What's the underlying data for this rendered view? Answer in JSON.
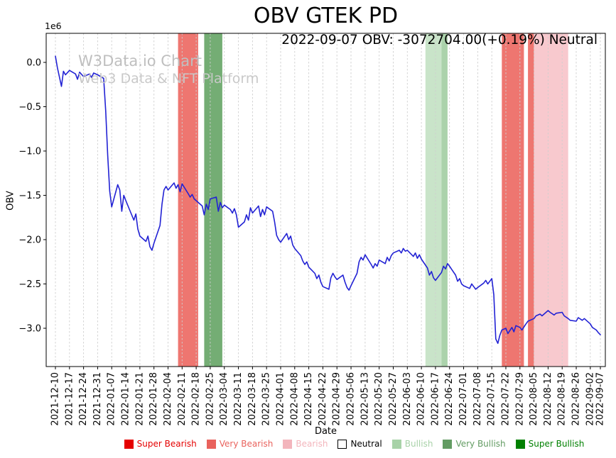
{
  "title": "OBV GTEK PD",
  "annotation": "2022-09-07 OBV: -3072704.00(+0.19%) Neutral",
  "watermark": {
    "line1": "W3Data.io Chart",
    "line2": "Web3 Data & NFT Platform"
  },
  "axes": {
    "ylabel": "OBV",
    "xlabel": "Date",
    "offset_label": "1e6"
  },
  "status": {
    "date": "2022-09-07",
    "obv_value": -3072704.0,
    "change_pct": "+0.19%",
    "signal": "Neutral"
  },
  "chart_data": {
    "type": "line",
    "title": "OBV GTEK PD",
    "xlabel": "Date",
    "ylabel": "OBV",
    "y_scale": 1000000,
    "ylim": [
      -3.432,
      0.328
    ],
    "x_range": [
      "2021-12-10",
      "2022-09-07"
    ],
    "grid_color": "#cfcfcf",
    "y_ticks": [
      0.0,
      -0.5,
      -1.0,
      -1.5,
      -2.0,
      -2.5,
      -3.0
    ],
    "x_ticks": [
      "2021-12-10",
      "2021-12-17",
      "2021-12-24",
      "2021-12-31",
      "2022-01-07",
      "2022-01-14",
      "2022-01-21",
      "2022-01-28",
      "2022-02-04",
      "2022-02-11",
      "2022-02-18",
      "2022-02-25",
      "2022-03-04",
      "2022-03-11",
      "2022-03-18",
      "2022-03-25",
      "2022-04-01",
      "2022-04-08",
      "2022-04-15",
      "2022-04-22",
      "2022-04-29",
      "2022-05-06",
      "2022-05-13",
      "2022-05-20",
      "2022-05-27",
      "2022-06-03",
      "2022-06-10",
      "2022-06-17",
      "2022-06-24",
      "2022-07-01",
      "2022-07-08",
      "2022-07-15",
      "2022-07-22",
      "2022-07-29",
      "2022-08-05",
      "2022-08-12",
      "2022-08-19",
      "2022-08-26",
      "2022-09-02",
      "2022-09-07"
    ],
    "series": [
      {
        "name": "OBV",
        "color": "#2222d4",
        "points_unit": "days from 2021-12-10, value in 1e6",
        "points": [
          [
            0,
            0.07
          ],
          [
            1,
            -0.06
          ],
          [
            3,
            -0.27
          ],
          [
            4,
            -0.1
          ],
          [
            5,
            -0.14
          ],
          [
            7,
            -0.09
          ],
          [
            10,
            -0.13
          ],
          [
            11,
            -0.19
          ],
          [
            12,
            -0.11
          ],
          [
            14,
            -0.16
          ],
          [
            17,
            -0.13
          ],
          [
            18,
            -0.17
          ],
          [
            19,
            -0.12
          ],
          [
            21,
            -0.14
          ],
          [
            24,
            -0.18
          ],
          [
            25,
            -0.55
          ],
          [
            26,
            -1.05
          ],
          [
            27,
            -1.45
          ],
          [
            28,
            -1.63
          ],
          [
            31,
            -1.38
          ],
          [
            32,
            -1.44
          ],
          [
            33,
            -1.68
          ],
          [
            34,
            -1.5
          ],
          [
            35,
            -1.56
          ],
          [
            39,
            -1.78
          ],
          [
            40,
            -1.71
          ],
          [
            41,
            -1.88
          ],
          [
            42,
            -1.96
          ],
          [
            45,
            -2.02
          ],
          [
            46,
            -1.96
          ],
          [
            47,
            -2.08
          ],
          [
            48,
            -2.12
          ],
          [
            49,
            -2.04
          ],
          [
            52,
            -1.84
          ],
          [
            53,
            -1.6
          ],
          [
            54,
            -1.44
          ],
          [
            55,
            -1.4
          ],
          [
            56,
            -1.44
          ],
          [
            59,
            -1.36
          ],
          [
            60,
            -1.42
          ],
          [
            61,
            -1.38
          ],
          [
            62,
            -1.46
          ],
          [
            63,
            -1.37
          ],
          [
            66,
            -1.48
          ],
          [
            67,
            -1.52
          ],
          [
            68,
            -1.49
          ],
          [
            69,
            -1.54
          ],
          [
            70,
            -1.56
          ],
          [
            73,
            -1.62
          ],
          [
            74,
            -1.72
          ],
          [
            75,
            -1.6
          ],
          [
            76,
            -1.66
          ],
          [
            77,
            -1.54
          ],
          [
            80,
            -1.52
          ],
          [
            81,
            -1.68
          ],
          [
            82,
            -1.58
          ],
          [
            83,
            -1.64
          ],
          [
            84,
            -1.61
          ],
          [
            87,
            -1.66
          ],
          [
            88,
            -1.7
          ],
          [
            89,
            -1.65
          ],
          [
            90,
            -1.72
          ],
          [
            91,
            -1.86
          ],
          [
            94,
            -1.8
          ],
          [
            95,
            -1.72
          ],
          [
            96,
            -1.78
          ],
          [
            97,
            -1.64
          ],
          [
            98,
            -1.7
          ],
          [
            101,
            -1.62
          ],
          [
            102,
            -1.74
          ],
          [
            103,
            -1.66
          ],
          [
            104,
            -1.72
          ],
          [
            105,
            -1.63
          ],
          [
            108,
            -1.68
          ],
          [
            109,
            -1.8
          ],
          [
            110,
            -1.95
          ],
          [
            111,
            -2.0
          ],
          [
            112,
            -2.03
          ],
          [
            115,
            -1.93
          ],
          [
            116,
            -2.0
          ],
          [
            117,
            -1.96
          ],
          [
            118,
            -2.06
          ],
          [
            119,
            -2.1
          ],
          [
            122,
            -2.18
          ],
          [
            123,
            -2.24
          ],
          [
            124,
            -2.28
          ],
          [
            125,
            -2.25
          ],
          [
            126,
            -2.31
          ],
          [
            129,
            -2.38
          ],
          [
            130,
            -2.44
          ],
          [
            131,
            -2.4
          ],
          [
            132,
            -2.48
          ],
          [
            133,
            -2.53
          ],
          [
            136,
            -2.56
          ],
          [
            137,
            -2.43
          ],
          [
            138,
            -2.38
          ],
          [
            139,
            -2.42
          ],
          [
            140,
            -2.45
          ],
          [
            143,
            -2.4
          ],
          [
            144,
            -2.48
          ],
          [
            145,
            -2.54
          ],
          [
            146,
            -2.57
          ],
          [
            147,
            -2.52
          ],
          [
            150,
            -2.38
          ],
          [
            151,
            -2.25
          ],
          [
            152,
            -2.2
          ],
          [
            153,
            -2.23
          ],
          [
            154,
            -2.17
          ],
          [
            157,
            -2.28
          ],
          [
            158,
            -2.32
          ],
          [
            159,
            -2.27
          ],
          [
            160,
            -2.3
          ],
          [
            161,
            -2.23
          ],
          [
            164,
            -2.27
          ],
          [
            165,
            -2.2
          ],
          [
            166,
            -2.24
          ],
          [
            167,
            -2.18
          ],
          [
            168,
            -2.15
          ],
          [
            171,
            -2.12
          ],
          [
            172,
            -2.15
          ],
          [
            173,
            -2.1
          ],
          [
            174,
            -2.13
          ],
          [
            175,
            -2.12
          ],
          [
            178,
            -2.19
          ],
          [
            179,
            -2.15
          ],
          [
            180,
            -2.21
          ],
          [
            181,
            -2.17
          ],
          [
            182,
            -2.22
          ],
          [
            185,
            -2.32
          ],
          [
            186,
            -2.4
          ],
          [
            187,
            -2.36
          ],
          [
            188,
            -2.43
          ],
          [
            189,
            -2.46
          ],
          [
            192,
            -2.37
          ],
          [
            193,
            -2.3
          ],
          [
            194,
            -2.33
          ],
          [
            195,
            -2.27
          ],
          [
            196,
            -2.3
          ],
          [
            199,
            -2.4
          ],
          [
            200,
            -2.47
          ],
          [
            201,
            -2.44
          ],
          [
            202,
            -2.5
          ],
          [
            203,
            -2.52
          ],
          [
            206,
            -2.55
          ],
          [
            207,
            -2.5
          ],
          [
            208,
            -2.53
          ],
          [
            209,
            -2.56
          ],
          [
            210,
            -2.54
          ],
          [
            213,
            -2.49
          ],
          [
            214,
            -2.46
          ],
          [
            215,
            -2.5
          ],
          [
            216,
            -2.47
          ],
          [
            217,
            -2.44
          ],
          [
            218,
            -2.62
          ],
          [
            219,
            -3.12
          ],
          [
            220,
            -3.17
          ],
          [
            221,
            -3.08
          ],
          [
            222,
            -3.02
          ],
          [
            224,
            -3.0
          ],
          [
            225,
            -3.06
          ],
          [
            227,
            -2.99
          ],
          [
            228,
            -3.04
          ],
          [
            229,
            -2.97
          ],
          [
            231,
            -2.99
          ],
          [
            232,
            -3.02
          ],
          [
            234,
            -2.95
          ],
          [
            235,
            -2.92
          ],
          [
            238,
            -2.89
          ],
          [
            239,
            -2.86
          ],
          [
            241,
            -2.84
          ],
          [
            242,
            -2.86
          ],
          [
            245,
            -2.8
          ],
          [
            246,
            -2.82
          ],
          [
            248,
            -2.85
          ],
          [
            249,
            -2.83
          ],
          [
            252,
            -2.82
          ],
          [
            253,
            -2.86
          ],
          [
            255,
            -2.89
          ],
          [
            256,
            -2.91
          ],
          [
            259,
            -2.92
          ],
          [
            260,
            -2.88
          ],
          [
            262,
            -2.91
          ],
          [
            263,
            -2.89
          ],
          [
            266,
            -2.95
          ],
          [
            267,
            -2.99
          ],
          [
            269,
            -3.02
          ],
          [
            270,
            -3.05
          ],
          [
            271,
            -3.0727
          ]
        ]
      }
    ],
    "bands": [
      {
        "start": "2022-02-09",
        "end": "2022-02-19",
        "label": "Very Bearish",
        "color": "#ee7670"
      },
      {
        "start": "2022-02-22",
        "end": "2022-03-03",
        "label": "Very Bullish",
        "color": "#74ad74"
      },
      {
        "start": "2022-06-12",
        "end": "2022-06-20",
        "label": "Bullish",
        "color": "#c9e4c9"
      },
      {
        "start": "2022-06-20",
        "end": "2022-06-23",
        "label": "Bullish",
        "color": "#abd2ab"
      },
      {
        "start": "2022-07-20",
        "end": "2022-07-31",
        "label": "Very Bearish",
        "color": "#ee7670"
      },
      {
        "start": "2022-08-02",
        "end": "2022-08-05",
        "label": "Very Bearish",
        "color": "#ee7670"
      },
      {
        "start": "2022-08-05",
        "end": "2022-08-22",
        "label": "Bearish",
        "color": "#f8c9ce"
      }
    ]
  },
  "legend": [
    {
      "label": "Super Bearish",
      "color": "#e50000",
      "text_color": "#e50000"
    },
    {
      "label": "Very Bearish",
      "color": "#e9625c",
      "text_color": "#e9625c"
    },
    {
      "label": "Bearish",
      "color": "#f3b5bc",
      "text_color": "#f3b5bc"
    },
    {
      "label": "Neutral",
      "color": "#ffffff",
      "text_color": "#000000",
      "border": "#000000"
    },
    {
      "label": "Bullish",
      "color": "#a8d2a8",
      "text_color": "#a8d2a8"
    },
    {
      "label": "Very Bullish",
      "color": "#639c63",
      "text_color": "#639c63"
    },
    {
      "label": "Super Bullish",
      "color": "#008000",
      "text_color": "#008000"
    }
  ]
}
